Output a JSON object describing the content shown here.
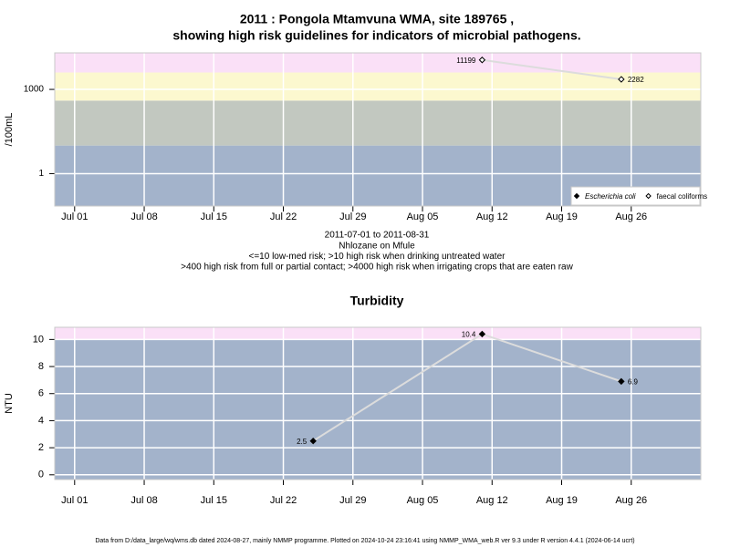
{
  "chart_data": [
    {
      "type": "line",
      "title": [
        "2011 : Pongola Mtamvuna WMA, site 189765 ,",
        "showing high risk guidelines for indicators of microbial pathogens."
      ],
      "subtitle": [
        "2011-07-01 to 2011-08-31",
        "Nhlozane on Mfule",
        "<=10 low-med risk; >10 high risk when drinking untreated water",
        ">400 high risk from full or partial contact; >4000 high risk when irrigating crops that are eaten raw"
      ],
      "y_label": "/100mL",
      "log_y": true,
      "x": [
        "2011-08-11",
        "2011-08-25"
      ],
      "series": [
        {
          "name": "Escherichia coli",
          "marker": "filled",
          "italic": true,
          "color": "#000000",
          "values": [
            null,
            null
          ]
        },
        {
          "name": "faecal coliforms",
          "marker": "open",
          "italic": false,
          "color": "#000000",
          "values": [
            11199,
            2282
          ]
        }
      ],
      "line_color": "#dcdcdc",
      "bands": [
        {
          "from": 0.07,
          "to": 10,
          "color": "#a3b3cb"
        },
        {
          "from": 10,
          "to": 400,
          "color": "#c2c8c0"
        },
        {
          "from": 400,
          "to": 4000,
          "color": "#fcf8cf"
        },
        {
          "from": 4000,
          "to": 20000,
          "color": "#fae0f7"
        }
      ],
      "xlim": [
        "2011-06-29",
        "2011-09-02"
      ],
      "xticks": [
        {
          "value": "2011-07-01",
          "label": "Jul 01"
        },
        {
          "value": "2011-07-08",
          "label": "Jul 08"
        },
        {
          "value": "2011-07-15",
          "label": "Jul 15"
        },
        {
          "value": "2011-07-22",
          "label": "Jul 22"
        },
        {
          "value": "2011-07-29",
          "label": "Jul 29"
        },
        {
          "value": "2011-08-05",
          "label": "Aug 05"
        },
        {
          "value": "2011-08-12",
          "label": "Aug 12"
        },
        {
          "value": "2011-08-19",
          "label": "Aug 19"
        },
        {
          "value": "2011-08-26",
          "label": "Aug 26"
        }
      ],
      "ylim": [
        0.07,
        20000
      ],
      "yticks": [
        1,
        1000
      ],
      "grid": true,
      "legend": "bottom right"
    },
    {
      "type": "line",
      "title": [
        "Turbidity"
      ],
      "y_label": "NTU",
      "log_y": false,
      "x": [
        "2011-07-25",
        "2011-08-11",
        "2011-08-25"
      ],
      "series": [
        {
          "name": "Turbidity",
          "marker": "filled",
          "italic": false,
          "color": "#000000",
          "values": [
            2.5,
            10.4,
            6.9
          ]
        }
      ],
      "line_color": "#dcdcdc",
      "bands": [
        {
          "from": -0.35,
          "to": 10,
          "color": "#a3b3cb"
        },
        {
          "from": 10,
          "to": 10.9,
          "color": "#fae0f7"
        }
      ],
      "xlim": [
        "2011-06-29",
        "2011-09-02"
      ],
      "xticks": [
        {
          "value": "2011-07-01",
          "label": "Jul 01"
        },
        {
          "value": "2011-07-08",
          "label": "Jul 08"
        },
        {
          "value": "2011-07-15",
          "label": "Jul 15"
        },
        {
          "value": "2011-07-22",
          "label": "Jul 22"
        },
        {
          "value": "2011-07-29",
          "label": "Jul 29"
        },
        {
          "value": "2011-08-05",
          "label": "Aug 05"
        },
        {
          "value": "2011-08-12",
          "label": "Aug 12"
        },
        {
          "value": "2011-08-19",
          "label": "Aug 19"
        },
        {
          "value": "2011-08-26",
          "label": "Aug 26"
        }
      ],
      "ylim": [
        -0.35,
        10.9
      ],
      "yticks": [
        0,
        2,
        4,
        6,
        8,
        10
      ],
      "grid": true
    }
  ],
  "footer": "Data from D:/data_large/wq/wms.db dated 2024-08-27, mainly NMMP programme. Plotted on 2024-10-24 23:16:41 using NMMP_WMA_web.R ver 9.3 under R version 4.4.1 (2024-06-14 ucrt)"
}
